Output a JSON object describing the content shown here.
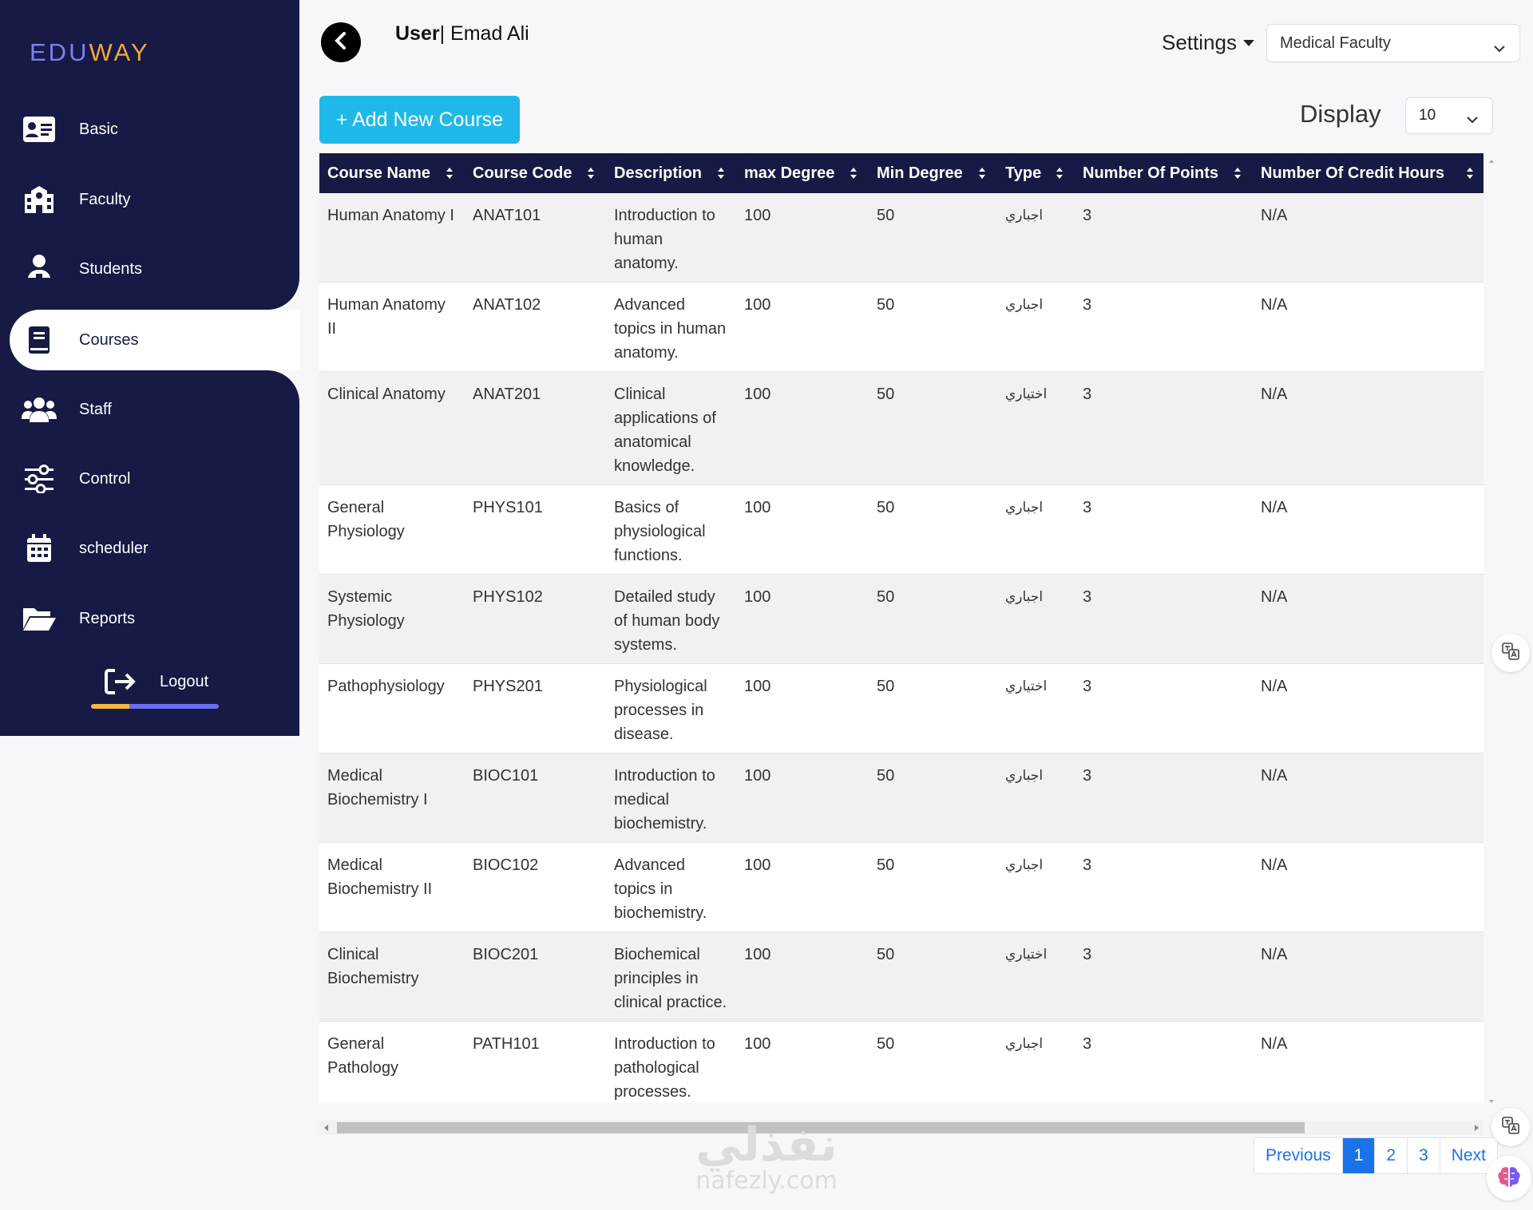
{
  "logo": {
    "part1": "EDU",
    "part2": "WAY"
  },
  "sidebar": {
    "items": [
      {
        "label": "Basic",
        "icon": "id-card-icon"
      },
      {
        "label": "Faculty",
        "icon": "school-icon"
      },
      {
        "label": "Students",
        "icon": "student-icon"
      },
      {
        "label": "Courses",
        "icon": "book-icon"
      },
      {
        "label": "Staff",
        "icon": "users-icon"
      },
      {
        "label": "Control",
        "icon": "sliders-icon"
      },
      {
        "label": "scheduler",
        "icon": "calendar-icon"
      },
      {
        "label": "Reports",
        "icon": "folder-open-icon"
      }
    ],
    "active": "Courses",
    "logout": "Logout"
  },
  "header": {
    "user_prefix": "User",
    "user_name": "| Emad Ali",
    "settings": "Settings",
    "faculty": "Medical Faculty"
  },
  "toolbar": {
    "add_course": "+ Add New Course",
    "display_label": "Display",
    "display_value": "10"
  },
  "table": {
    "columns": [
      "Course Name",
      "Course Code",
      "Description",
      "max Degree",
      "Min Degree",
      "Type",
      "Number Of Points",
      "Number Of Credit Hours"
    ],
    "rows": [
      [
        "Human Anatomy I",
        "ANAT101",
        "Introduction to human anatomy.",
        "100",
        "50",
        "اجباري",
        "3",
        "N/A"
      ],
      [
        "Human Anatomy II",
        "ANAT102",
        "Advanced topics in human anatomy.",
        "100",
        "50",
        "اجباري",
        "3",
        "N/A"
      ],
      [
        "Clinical Anatomy",
        "ANAT201",
        "Clinical applications of anatomical knowledge.",
        "100",
        "50",
        "اختياري",
        "3",
        "N/A"
      ],
      [
        "General Physiology",
        "PHYS101",
        "Basics of physiological functions.",
        "100",
        "50",
        "اجباري",
        "3",
        "N/A"
      ],
      [
        "Systemic Physiology",
        "PHYS102",
        "Detailed study of human body systems.",
        "100",
        "50",
        "اجباري",
        "3",
        "N/A"
      ],
      [
        "Pathophysiology",
        "PHYS201",
        "Physiological processes in disease.",
        "100",
        "50",
        "اختياري",
        "3",
        "N/A"
      ],
      [
        "Medical Biochemistry I",
        "BIOC101",
        "Introduction to medical biochemistry.",
        "100",
        "50",
        "اجباري",
        "3",
        "N/A"
      ],
      [
        "Medical Biochemistry II",
        "BIOC102",
        "Advanced topics in biochemistry.",
        "100",
        "50",
        "اجباري",
        "3",
        "N/A"
      ],
      [
        "Clinical Biochemistry",
        "BIOC201",
        "Biochemical principles in clinical practice.",
        "100",
        "50",
        "اختياري",
        "3",
        "N/A"
      ],
      [
        "General Pathology",
        "PATH101",
        "Introduction to pathological processes.",
        "100",
        "50",
        "اجباري",
        "3",
        "N/A"
      ]
    ]
  },
  "pagination": {
    "previous": "Previous",
    "pages": [
      "1",
      "2",
      "3"
    ],
    "active": "1",
    "next": "Next"
  },
  "watermark": {
    "arabic": "نفذلي",
    "latin": "nafezly.com"
  },
  "colors": {
    "sidebar": "#161a44",
    "accent": "#1fb9e9",
    "primary": "#1a73e8"
  }
}
